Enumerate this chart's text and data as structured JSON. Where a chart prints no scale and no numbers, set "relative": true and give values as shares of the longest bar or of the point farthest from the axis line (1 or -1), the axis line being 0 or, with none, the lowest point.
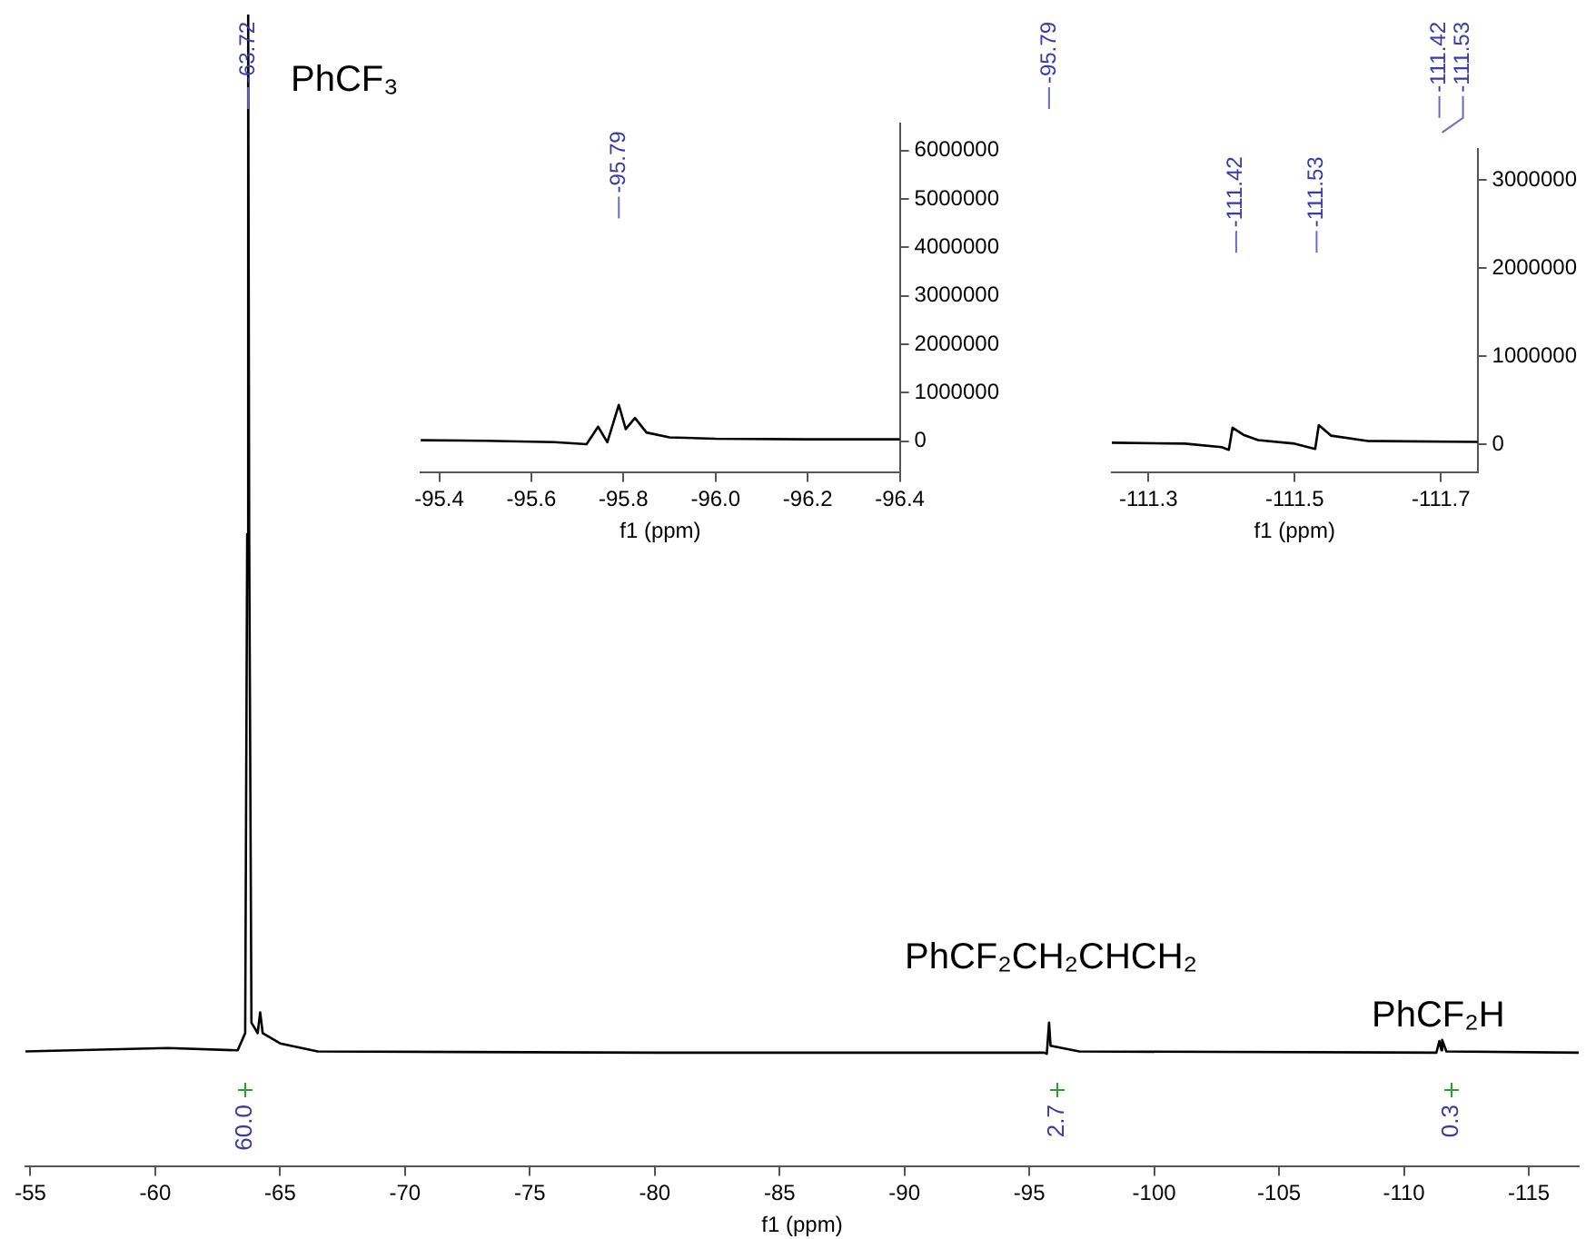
{
  "chart_data": [
    {
      "type": "line",
      "xlabel": "f1 (ppm)",
      "relative": true,
      "marker": "none",
      "x": [
        -54.8,
        -60.5,
        -63.3,
        -63.5,
        -63.6,
        -63.68,
        -63.72,
        -63.76,
        -63.85,
        -64.1,
        -64.2,
        -64.3,
        -65,
        -66.5,
        -80,
        -95.6,
        -95.7,
        -95.79,
        -95.85,
        -97,
        -111.3,
        -111.42,
        -111.5,
        -111.53,
        -111.7,
        -117
      ],
      "series": [
        {
          "color": "#000000",
          "values": [
            0.1,
            0.103,
            0.101,
            0.111,
            0.116,
            0.549,
            1,
            0.549,
            0.125,
            0.116,
            0.134,
            0.116,
            0.107,
            0.1,
            0.099,
            0.099,
            0.098,
            0.125,
            0.105,
            0.1,
            0.099,
            0.109,
            0.101,
            0.11,
            0.1,
            0.099
          ]
        }
      ],
      "xlim": [
        -54.8,
        -117
      ],
      "xticks": [
        -55,
        -60,
        -65,
        -70,
        -75,
        -80,
        -85,
        -90,
        -95,
        -100,
        -105,
        -110,
        -115
      ],
      "annotations": [
        {
          "text": "-63.72",
          "x": -63.72
        },
        {
          "text": "-95.79",
          "x": -95.79
        },
        {
          "text": "-111.42",
          "x": -111.42
        },
        {
          "text": "-111.53",
          "x": -111.53
        },
        "60.0",
        "2.7",
        "0.3",
        "PhCF₃",
        "PhCF₂CH₂CHCH₂",
        "PhCF₂H"
      ]
    },
    {
      "type": "line",
      "xlabel": "f1 (ppm)",
      "marker": "none",
      "x": [
        -95.36,
        -95.5,
        -95.65,
        -95.72,
        -95.745,
        -95.765,
        -95.79,
        -95.805,
        -95.825,
        -95.85,
        -95.9,
        -96.0,
        -96.2,
        -96.4
      ],
      "series": [
        {
          "color": "#000000",
          "values": [
            20000,
            10000,
            -20000,
            -60000,
            300000,
            -20000,
            750000,
            250000,
            480000,
            180000,
            80000,
            50000,
            40000,
            40000
          ]
        }
      ],
      "xlim": [
        -95.36,
        -96.4
      ],
      "xticks": [
        -95.4,
        -95.6,
        -95.8,
        {
          "value": -96,
          "label": "-96.0"
        },
        -96.2,
        -96.4
      ],
      "ylim": [
        -650000,
        6550000
      ],
      "yticks": [
        0,
        1000000,
        2000000,
        3000000,
        4000000,
        5000000,
        6000000
      ],
      "annotations": [
        {
          "text": "-95.79",
          "x": -95.79
        }
      ]
    },
    {
      "type": "line",
      "xlabel": "f1 (ppm)",
      "marker": "none",
      "x": [
        -111.25,
        -111.35,
        -111.4,
        -111.41,
        -111.415,
        -111.43,
        -111.45,
        -111.5,
        -111.528,
        -111.533,
        -111.55,
        -111.6,
        -111.75
      ],
      "series": [
        {
          "color": "#000000",
          "values": [
            20000,
            10000,
            -30000,
            -60000,
            190000,
            110000,
            50000,
            10000,
            -50000,
            220000,
            100000,
            40000,
            30000
          ]
        }
      ],
      "xlim": [
        -111.25,
        -111.75
      ],
      "xticks": [
        -111.3,
        -111.5,
        -111.7
      ],
      "ylim": [
        -320000,
        3350000
      ],
      "yticks": [
        0,
        1000000,
        2000000,
        3000000
      ],
      "annotations": [
        {
          "text": "-111.42",
          "x": -111.42
        },
        {
          "text": "-111.53",
          "x": -111.53
        }
      ]
    }
  ]
}
